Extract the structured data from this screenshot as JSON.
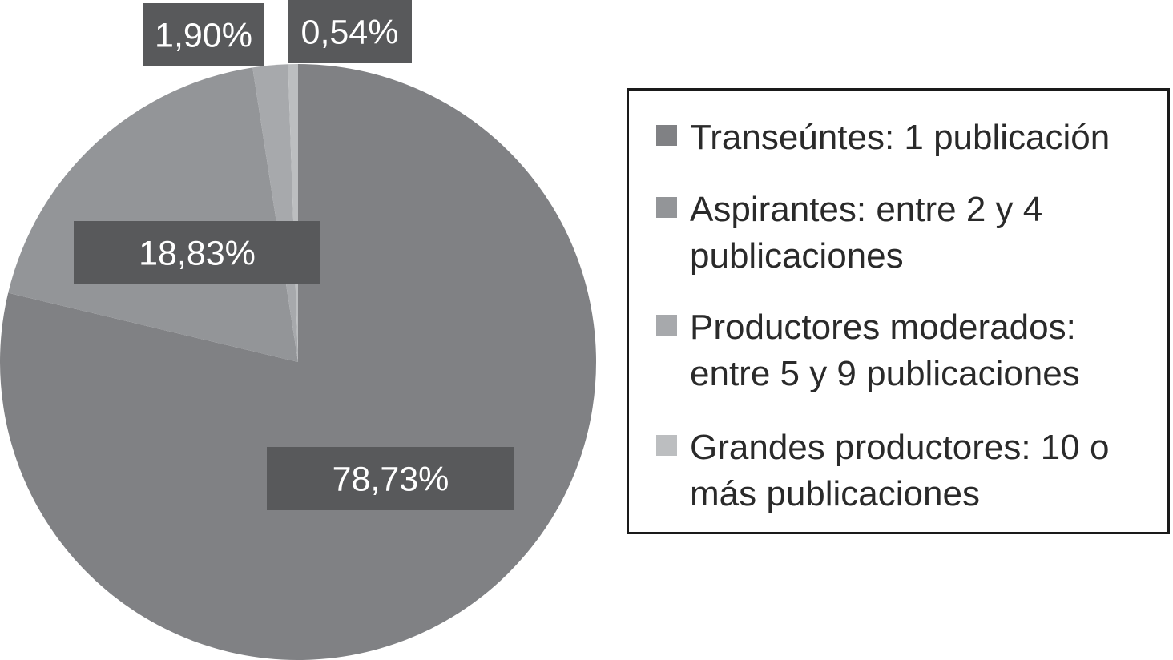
{
  "chart_data": {
    "type": "pie",
    "title": "",
    "slices": [
      {
        "label": "Transeúntes: 1 publicación",
        "label_lines": [
          "Transeúntes: 1 publicación"
        ],
        "value": 78.73,
        "value_label": "78,73%",
        "color": "#808184"
      },
      {
        "label": "Aspirantes: entre 2 y 4 publicaciones",
        "label_lines": [
          "Aspirantes: entre 2 y 4",
          "publicaciones"
        ],
        "value": 18.83,
        "value_label": "18,83%",
        "color": "#939598"
      },
      {
        "label": "Productores moderados: entre 5 y 9 publicaciones",
        "label_lines": [
          "Productores moderados:",
          "entre 5 y 9 publicaciones"
        ],
        "value": 1.9,
        "value_label": "1,90%",
        "color": "#a7a9ac"
      },
      {
        "label": "Grandes productores: 10 o más publicaciones",
        "label_lines": [
          "Grandes productores: 10 o",
          "más publicaciones"
        ],
        "value": 0.54,
        "value_label": "0,54%",
        "color": "#bcbec0"
      }
    ],
    "legend_position": "right",
    "data_label_style": {
      "box_color": "#58595b",
      "text_color": "#ffffff"
    }
  }
}
